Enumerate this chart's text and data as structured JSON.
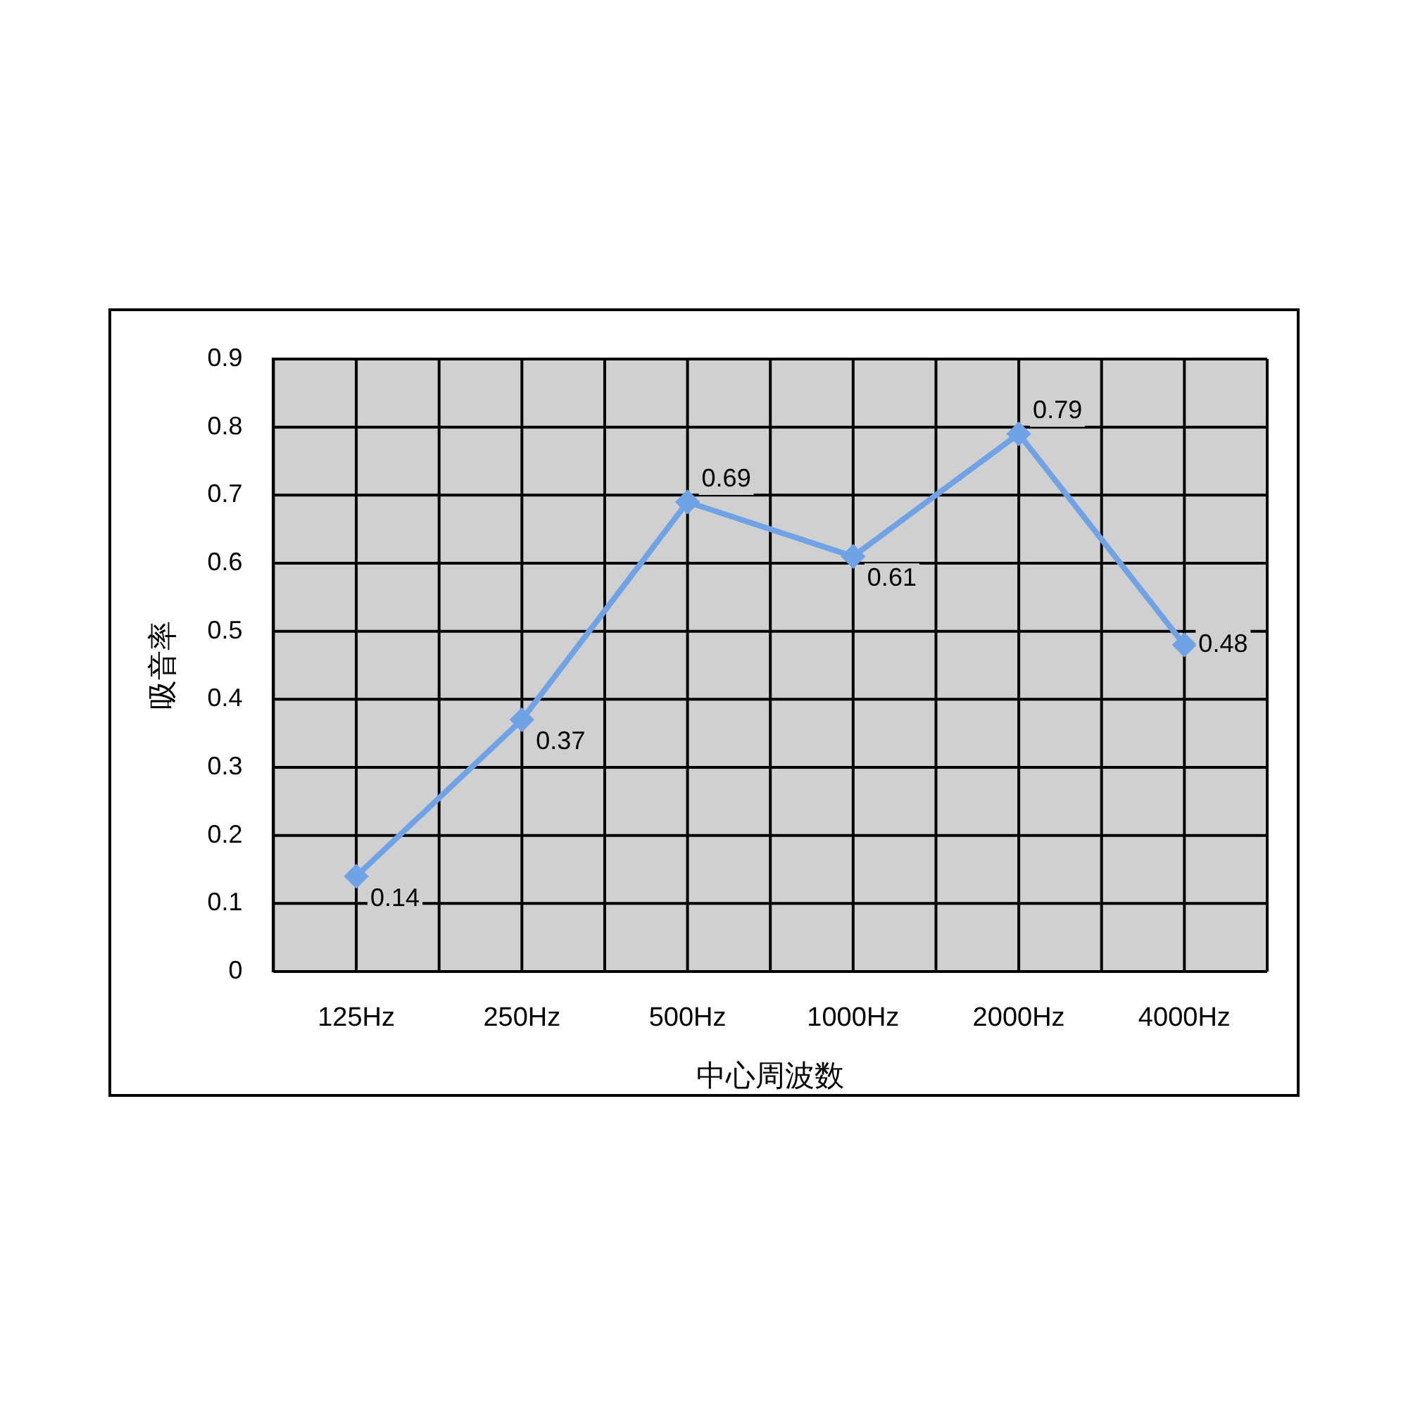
{
  "chart_data": {
    "type": "line",
    "xlabel": "中心周波数",
    "ylabel": "吸音率",
    "categories": [
      "125Hz",
      "250Hz",
      "500Hz",
      "1000Hz",
      "2000Hz",
      "4000Hz"
    ],
    "series": [
      {
        "color": "#6fa3e6",
        "values": [
          0.14,
          0.37,
          0.69,
          0.61,
          0.79,
          0.48
        ]
      }
    ],
    "ylim": [
      0,
      0.9
    ],
    "yticks": [
      0,
      0.1,
      0.2,
      0.3,
      0.4,
      0.5,
      0.6,
      0.7,
      0.8,
      0.9
    ],
    "grid": true,
    "legend": false,
    "marker": "diamond",
    "line_style": "solid",
    "data_labels": true
  }
}
